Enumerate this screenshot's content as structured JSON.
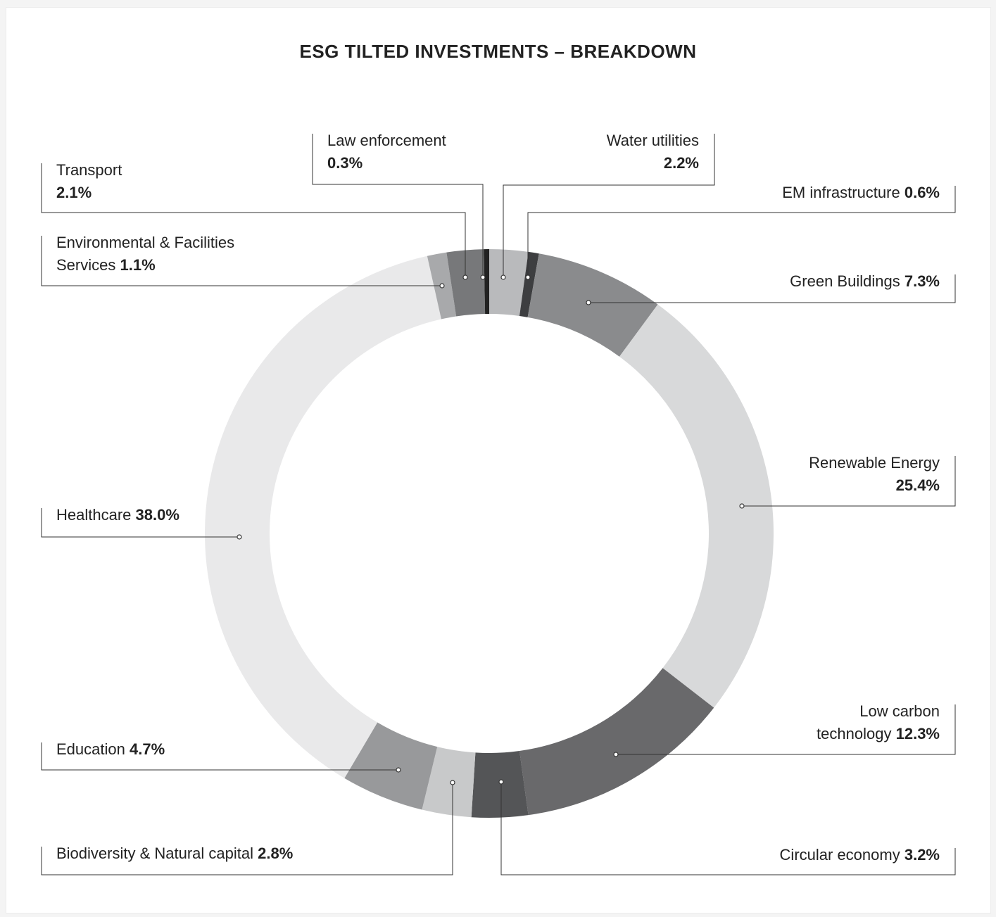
{
  "chart_data": {
    "type": "donut",
    "title": "ESG TILTED INVESTMENTS – BREAKDOWN",
    "categories": [
      "Water utilities",
      "EM infrastructure",
      "Green Buildings",
      "Renewable Energy",
      "Low carbon technology",
      "Circular economy",
      "Biodiversity & Natural capital",
      "Education",
      "Healthcare",
      "Environmental & Facilities Services",
      "Transport",
      "Law enforcement"
    ],
    "values": [
      2.2,
      0.6,
      7.3,
      25.4,
      12.3,
      3.2,
      2.8,
      4.7,
      38.0,
      1.1,
      2.1,
      0.3
    ],
    "value_labels": [
      "2.2%",
      "0.6%",
      "7.3%",
      "25.4%",
      "12.3%",
      "3.2%",
      "2.8%",
      "4.7%",
      "38.0%",
      "1.1%",
      "2.1%",
      "0.3%"
    ],
    "colors": [
      "#b9babc",
      "#3d3e40",
      "#8a8b8d",
      "#d8d9da",
      "#69696b",
      "#545557",
      "#c8c9ca",
      "#98999b",
      "#e9e9ea",
      "#a8a9ab",
      "#77787a",
      "#222222"
    ]
  }
}
